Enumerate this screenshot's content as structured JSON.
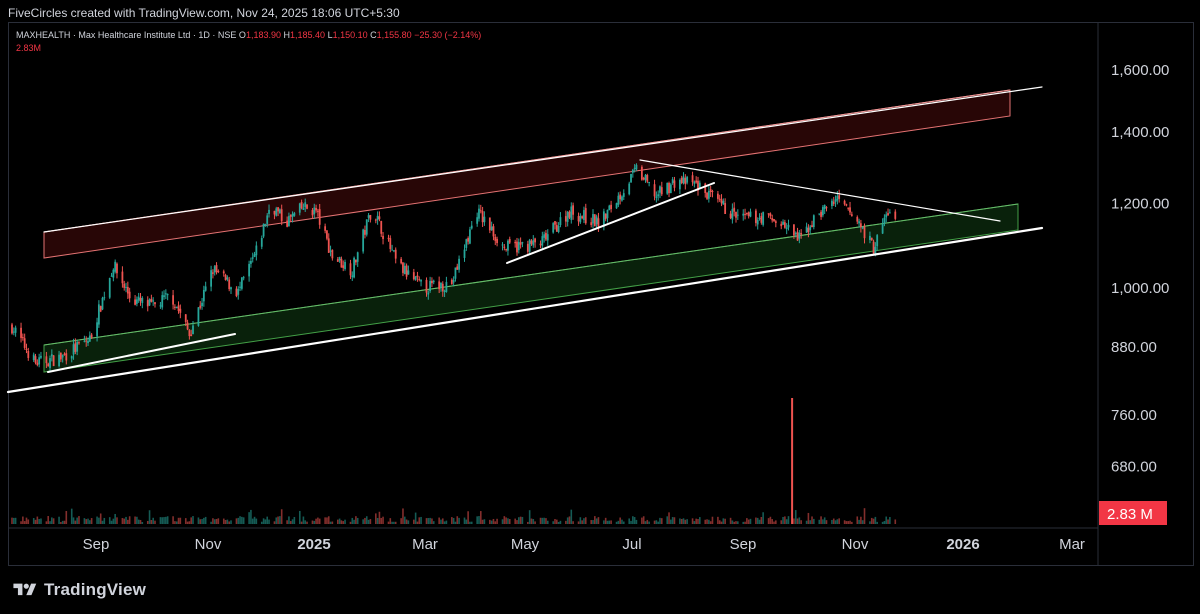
{
  "header": {
    "attribution": "FiveCircles created with TradingView.com, Nov 24, 2025 18:06 UTC+5:30"
  },
  "legend": {
    "symbol": "MAXHEALTH · Max Healthcare Institute Ltd · 1D · NSE",
    "o_key": "O",
    "o_val": "1,183.90",
    "h_key": "H",
    "h_val": "1,185.40",
    "l_key": "L",
    "l_val": "1,150.10",
    "c_key": "C",
    "c_val": "1,155.80",
    "change": "−25.30 (−2.14%)",
    "volume": "2.83M"
  },
  "footer": {
    "brand": "TradingView"
  },
  "colors": {
    "up": "#26a69a",
    "down": "#ef5350",
    "resistance_zone": "#b71c1c",
    "support_zone": "#1b5e20",
    "trendline": "#ffffff",
    "volume_badge": "#f23645"
  },
  "chart_data": {
    "type": "candlestick",
    "y_scale": "log",
    "y_ticks": [
      "1,600.00",
      "1,400.00",
      "1,200.00",
      "1,000.00",
      "880.00",
      "760.00",
      "680.00"
    ],
    "x_ticks": [
      "Sep",
      "Nov",
      "2025",
      "Mar",
      "May",
      "Jul",
      "Sep",
      "Nov",
      "2026",
      "Mar"
    ],
    "volume_badge": "2.83 M",
    "price_path": [
      {
        "date": "2024-07-24",
        "price": 920
      },
      {
        "date": "2024-08-06",
        "price": 850
      },
      {
        "date": "2024-08-20",
        "price": 860
      },
      {
        "date": "2024-09-05",
        "price": 895
      },
      {
        "date": "2024-09-18",
        "price": 1050
      },
      {
        "date": "2024-09-28",
        "price": 975
      },
      {
        "date": "2024-10-10",
        "price": 960
      },
      {
        "date": "2024-10-20",
        "price": 985
      },
      {
        "date": "2024-10-30",
        "price": 905
      },
      {
        "date": "2024-11-12",
        "price": 1040
      },
      {
        "date": "2024-11-26",
        "price": 990
      },
      {
        "date": "2024-12-06",
        "price": 1080
      },
      {
        "date": "2024-12-14",
        "price": 1200
      },
      {
        "date": "2024-12-22",
        "price": 1150
      },
      {
        "date": "2025-01-01",
        "price": 1190
      },
      {
        "date": "2025-01-08",
        "price": 1180
      },
      {
        "date": "2025-01-17",
        "price": 1070
      },
      {
        "date": "2025-01-28",
        "price": 1040
      },
      {
        "date": "2025-02-08",
        "price": 1190
      },
      {
        "date": "2025-02-22",
        "price": 1050
      },
      {
        "date": "2025-03-08",
        "price": 1000
      },
      {
        "date": "2025-03-24",
        "price": 1010
      },
      {
        "date": "2025-04-07",
        "price": 1180
      },
      {
        "date": "2025-04-22",
        "price": 1090
      },
      {
        "date": "2025-05-12",
        "price": 1100
      },
      {
        "date": "2025-05-28",
        "price": 1180
      },
      {
        "date": "2025-06-14",
        "price": 1150
      },
      {
        "date": "2025-06-26",
        "price": 1230
      },
      {
        "date": "2025-07-04",
        "price": 1290
      },
      {
        "date": "2025-07-15",
        "price": 1220
      },
      {
        "date": "2025-07-26",
        "price": 1260
      },
      {
        "date": "2025-08-06",
        "price": 1250
      },
      {
        "date": "2025-08-18",
        "price": 1200
      },
      {
        "date": "2025-08-30",
        "price": 1160
      },
      {
        "date": "2025-09-12",
        "price": 1165
      },
      {
        "date": "2025-09-22",
        "price": 1150
      },
      {
        "date": "2025-10-02",
        "price": 1110
      },
      {
        "date": "2025-10-12",
        "price": 1170
      },
      {
        "date": "2025-10-22",
        "price": 1210
      },
      {
        "date": "2025-11-04",
        "price": 1150
      },
      {
        "date": "2025-11-12",
        "price": 1090
      },
      {
        "date": "2025-11-20",
        "price": 1180
      },
      {
        "date": "2025-11-24",
        "price": 1156
      }
    ],
    "volume_path": [
      {
        "date": "2025-09-28",
        "value": 22
      }
    ]
  }
}
